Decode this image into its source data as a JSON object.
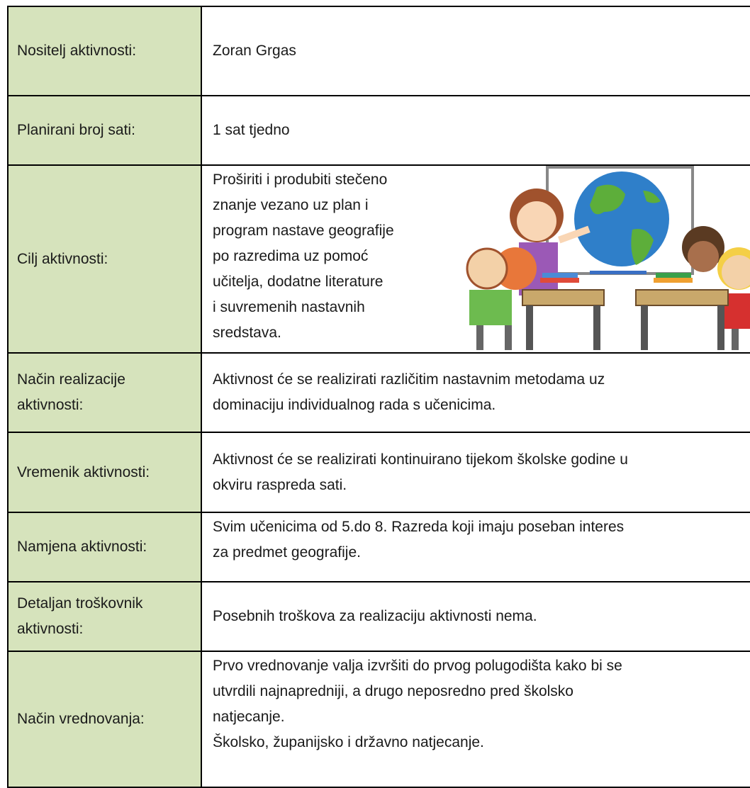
{
  "rows": [
    {
      "label": [
        "Nositelj aktivnosti:"
      ],
      "text": [
        "Zoran Grgas"
      ]
    },
    {
      "label": [
        "Planirani broj sati:"
      ],
      "text": [
        "1 sat tjedno"
      ]
    },
    {
      "label": [
        "Cilj aktivnosti:"
      ],
      "text": [
        "Proširiti i produbiti stečeno",
        "znanje vezano uz plan i",
        "program nastave geografije",
        "po razredima uz pomoć",
        "učitelja, dodatne literature",
        "i suvremenih nastavnih",
        "sredstava."
      ]
    },
    {
      "label": [
        "Način realizacije",
        "aktivnosti:"
      ],
      "text": [
        "Aktivnost će se realizirati različitim nastavnim metodama uz",
        "dominaciju individualnog rada s učenicima."
      ]
    },
    {
      "label": [
        "Vremenik aktivnosti:"
      ],
      "text": [
        "Aktivnost će se realizirati kontinuirano tijekom školske godine u",
        "okviru raspreda sati."
      ]
    },
    {
      "label": [
        "Namjena aktivnosti:"
      ],
      "text": [
        "Svim učenicima od 5.do 8. Razreda koji imaju poseban interes",
        "za predmet geografije."
      ]
    },
    {
      "label": [
        "Detaljan troškovnik",
        "aktivnosti:"
      ],
      "text": [
        "Posebnih troškova za realizaciju aktivnosti nema."
      ]
    },
    {
      "label": [
        "Način vrednovanja:"
      ],
      "text": [
        "Prvo vrednovanje valja izvršiti do prvog polugodišta kako bi se",
        "utvrdili najnapredniji, a drugo neposredno pred školsko",
        "natjecanje.",
        "Školsko, županijsko i državno natjecanje."
      ]
    }
  ]
}
